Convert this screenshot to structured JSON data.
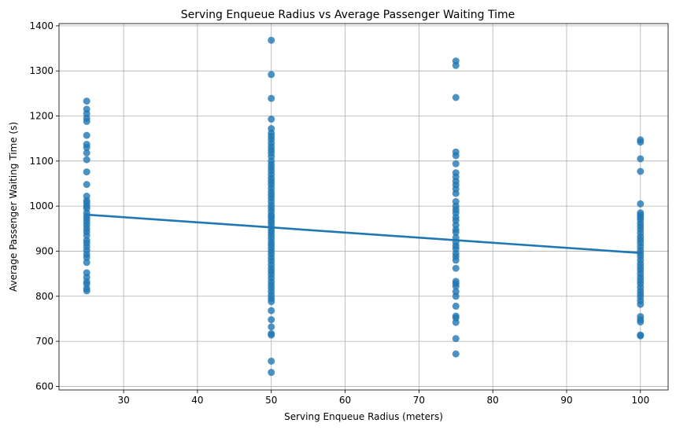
{
  "chart_data": {
    "type": "scatter",
    "title": "Serving Enqueue Radius vs Average Passenger Waiting Time",
    "xlabel": "Serving Enqueue Radius (meters)",
    "ylabel": "Average Passenger Waiting Time (s)",
    "xlim": [
      21.25,
      103.75
    ],
    "ylim": [
      592,
      1405
    ],
    "xticks": [
      30,
      40,
      50,
      60,
      70,
      80,
      90,
      100
    ],
    "yticks": [
      600,
      700,
      800,
      900,
      1000,
      1100,
      1200,
      1300,
      1400
    ],
    "grid": true,
    "legend": "none",
    "point_color": "#1f77b4",
    "line_color": "#1f77b4",
    "series": [
      {
        "x": 25,
        "y": [
          1233,
          1215,
          1205,
          1195,
          1188,
          1157,
          1137,
          1130,
          1118,
          1103,
          1076,
          1048,
          1022,
          1012,
          1007,
          1000,
          995,
          985,
          978,
          972,
          965,
          958,
          950,
          943,
          935,
          924,
          918,
          910,
          902,
          893,
          886,
          875,
          852,
          842,
          832,
          827,
          817,
          812
        ]
      },
      {
        "x": 50,
        "y": [
          1368,
          1292,
          1239,
          1193,
          1172,
          1162,
          1155,
          1148,
          1140,
          1132,
          1125,
          1118,
          1110,
          1100,
          1092,
          1085,
          1078,
          1070,
          1062,
          1055,
          1048,
          1040,
          1032,
          1025,
          1018,
          1010,
          1002,
          995,
          988,
          980,
          975,
          968,
          962,
          955,
          948,
          942,
          935,
          928,
          920,
          914,
          907,
          900,
          893,
          885,
          878,
          870,
          862,
          855,
          848,
          840,
          832,
          825,
          818,
          810,
          802,
          795,
          788,
          768,
          748,
          732,
          717,
          714,
          656,
          631
        ]
      },
      {
        "x": 75,
        "y": [
          1322,
          1312,
          1241,
          1120,
          1112,
          1094,
          1074,
          1065,
          1055,
          1047,
          1038,
          1028,
          1010,
          1000,
          992,
          985,
          975,
          968,
          958,
          948,
          942,
          930,
          920,
          912,
          905,
          895,
          888,
          880,
          862,
          833,
          828,
          822,
          810,
          800,
          778,
          756,
          752,
          742,
          706,
          672
        ]
      },
      {
        "x": 100,
        "y": [
          1147,
          1142,
          1105,
          1077,
          1005,
          985,
          980,
          975,
          970,
          962,
          955,
          948,
          940,
          932,
          925,
          918,
          910,
          902,
          895,
          888,
          880,
          872,
          865,
          858,
          850,
          842,
          835,
          828,
          820,
          812,
          805,
          798,
          790,
          782,
          755,
          748,
          743,
          714,
          712
        ]
      }
    ],
    "regression": {
      "x": [
        25,
        100
      ],
      "y": [
        981,
        896
      ]
    }
  }
}
